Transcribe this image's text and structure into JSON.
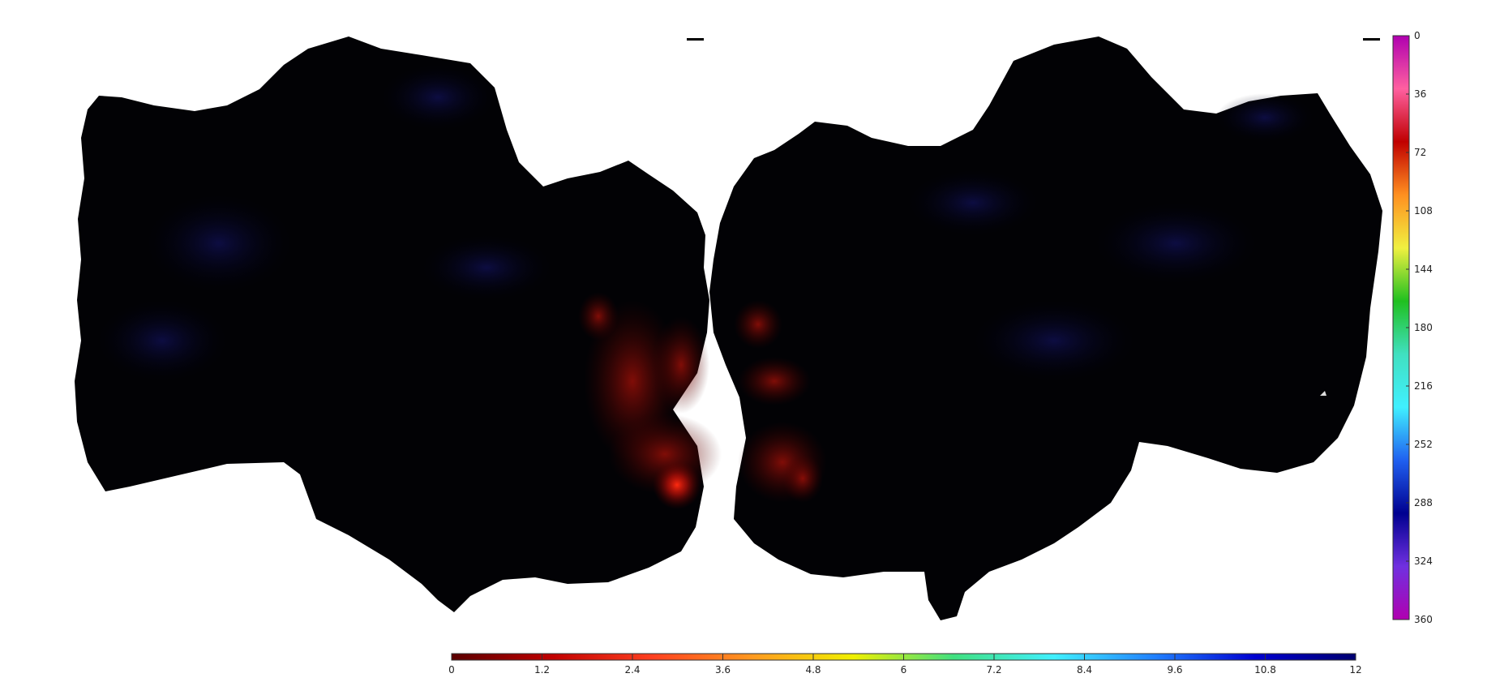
{
  "figure": {
    "background": "#ffffff",
    "hemispheres": [
      "left-flatmap",
      "right-flatmap"
    ]
  },
  "vertical_colorbar": {
    "ticks": [
      "0",
      "36",
      "72",
      "108",
      "144",
      "180",
      "216",
      "252",
      "288",
      "324",
      "360"
    ],
    "colors": [
      "#b000b0",
      "#ff60a0",
      "#c00000",
      "#ff9020",
      "#f0f040",
      "#20c020",
      "#40e0c0",
      "#40f0ff",
      "#2060f0",
      "#000090",
      "#7030e0",
      "#b000b0"
    ]
  },
  "horizontal_colorbar": {
    "ticks": [
      "0",
      "1.2",
      "2.4",
      "3.6",
      "4.8",
      "6",
      "7.2",
      "8.4",
      "9.6",
      "10.8",
      "12"
    ],
    "colors": [
      "#5a0000",
      "#c00000",
      "#ff4020",
      "#ff9a20",
      "#f0f000",
      "#40e080",
      "#40f0ff",
      "#2080ff",
      "#0000d0",
      "#000070"
    ]
  }
}
